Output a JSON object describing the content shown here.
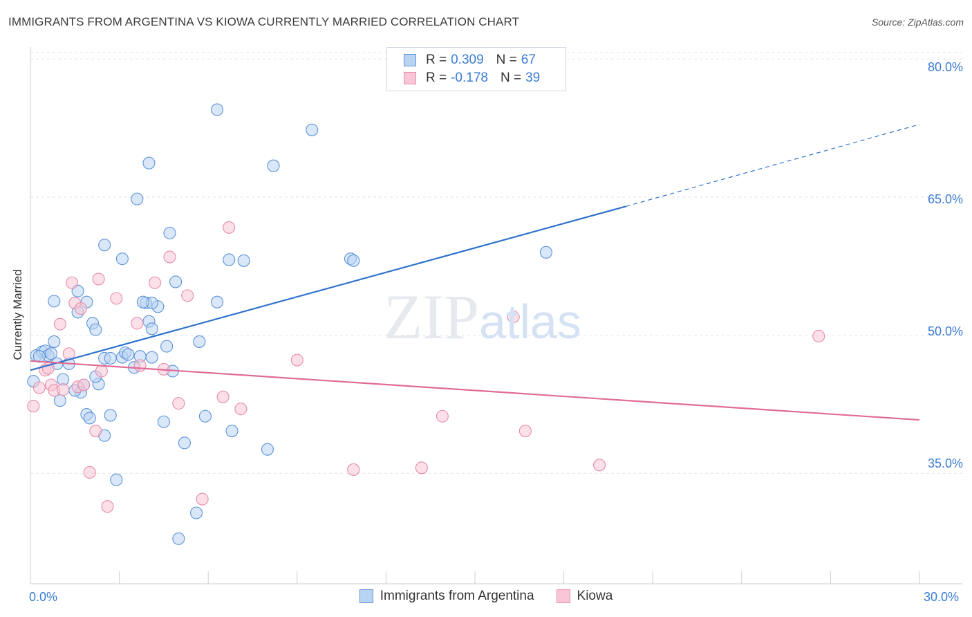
{
  "title": "IMMIGRANTS FROM ARGENTINA VS KIOWA CURRENTLY MARRIED CORRELATION CHART",
  "source": "Source: ZipAtlas.com",
  "watermark": {
    "zip": "ZIP",
    "atlas": "atlas"
  },
  "legend": {
    "r_label": "R =",
    "n_label": "N =",
    "series1": {
      "r": "0.309",
      "n": "67"
    },
    "series2": {
      "r": "-0.178",
      "n": "39"
    }
  },
  "colors": {
    "blue_fill": "#b9d3f3",
    "blue_stroke": "#5b93d8",
    "blue_line": "#2f72cc",
    "pink_fill": "#f8c6d6",
    "pink_stroke": "#e58cab",
    "pink_line": "#e06b96",
    "tick_text": "#3a7bd5",
    "grid": "#dfe3e8"
  },
  "chart_data": {
    "type": "scatter",
    "xlabel": "",
    "ylabel": "Currently Married",
    "xlim": [
      0,
      30
    ],
    "ylim": [
      23,
      81
    ],
    "x_tick_labels": [
      "0.0%",
      "30.0%"
    ],
    "y_ticks": [
      35,
      50,
      65,
      80
    ],
    "y_tick_labels": [
      "35.0%",
      "50.0%",
      "65.0%",
      "80.0%"
    ],
    "grid": true,
    "legend_position": "top-center",
    "series": [
      {
        "name": "Immigrants from Argentina",
        "color": "blue",
        "points": [
          [
            0.1,
            45.0
          ],
          [
            0.2,
            47.8
          ],
          [
            0.4,
            48.2
          ],
          [
            0.5,
            48.3
          ],
          [
            0.6,
            47.8
          ],
          [
            0.7,
            48.0
          ],
          [
            0.8,
            49.3
          ],
          [
            0.9,
            46.9
          ],
          [
            1.0,
            42.9
          ],
          [
            1.1,
            45.2
          ],
          [
            1.3,
            46.9
          ],
          [
            0.8,
            53.7
          ],
          [
            1.9,
            53.6
          ],
          [
            1.6,
            54.8
          ],
          [
            1.6,
            52.5
          ],
          [
            2.1,
            51.3
          ],
          [
            2.2,
            50.6
          ],
          [
            1.7,
            43.8
          ],
          [
            1.9,
            41.4
          ],
          [
            2.0,
            41.0
          ],
          [
            2.5,
            39.1
          ],
          [
            2.3,
            44.7
          ],
          [
            2.5,
            47.5
          ],
          [
            2.7,
            47.5
          ],
          [
            2.7,
            41.3
          ],
          [
            3.1,
            47.6
          ],
          [
            3.2,
            48.1
          ],
          [
            3.3,
            47.9
          ],
          [
            3.5,
            46.5
          ],
          [
            3.7,
            47.7
          ],
          [
            3.9,
            53.5
          ],
          [
            4.1,
            47.6
          ],
          [
            4.0,
            51.5
          ],
          [
            4.1,
            50.7
          ],
          [
            4.3,
            53.1
          ],
          [
            4.1,
            53.5
          ],
          [
            4.6,
            48.8
          ],
          [
            4.8,
            46.1
          ],
          [
            4.9,
            55.8
          ],
          [
            4.5,
            40.6
          ],
          [
            5.2,
            38.3
          ],
          [
            5.7,
            49.3
          ],
          [
            5.9,
            41.2
          ],
          [
            6.3,
            53.6
          ],
          [
            6.7,
            58.2
          ],
          [
            6.8,
            39.6
          ],
          [
            7.2,
            58.1
          ],
          [
            8.0,
            37.6
          ],
          [
            8.2,
            68.4
          ],
          [
            9.5,
            72.3
          ],
          [
            10.8,
            58.3
          ],
          [
            10.9,
            58.1
          ],
          [
            17.4,
            59.0
          ],
          [
            6.3,
            74.5
          ],
          [
            4.0,
            68.7
          ],
          [
            3.6,
            64.8
          ],
          [
            4.7,
            61.1
          ],
          [
            2.5,
            59.8
          ],
          [
            3.1,
            58.3
          ],
          [
            3.8,
            53.6
          ],
          [
            2.9,
            34.3
          ],
          [
            5.6,
            30.7
          ],
          [
            5.0,
            27.9
          ],
          [
            2.2,
            45.5
          ],
          [
            1.8,
            44.6
          ],
          [
            0.3,
            47.7
          ],
          [
            1.5,
            44.0
          ]
        ]
      },
      {
        "name": "Kiowa",
        "color": "pink",
        "points": [
          [
            0.1,
            42.3
          ],
          [
            0.3,
            44.3
          ],
          [
            0.5,
            46.2
          ],
          [
            0.7,
            44.6
          ],
          [
            0.8,
            44.0
          ],
          [
            1.0,
            51.2
          ],
          [
            1.1,
            44.1
          ],
          [
            1.3,
            48.0
          ],
          [
            1.4,
            55.7
          ],
          [
            1.5,
            53.5
          ],
          [
            1.6,
            44.4
          ],
          [
            1.7,
            52.9
          ],
          [
            2.0,
            35.1
          ],
          [
            2.2,
            39.6
          ],
          [
            2.3,
            56.1
          ],
          [
            2.4,
            46.1
          ],
          [
            2.6,
            31.4
          ],
          [
            2.9,
            54.0
          ],
          [
            3.6,
            51.3
          ],
          [
            3.7,
            46.7
          ],
          [
            4.2,
            55.7
          ],
          [
            4.5,
            46.3
          ],
          [
            4.7,
            58.5
          ],
          [
            5.0,
            42.6
          ],
          [
            5.3,
            54.3
          ],
          [
            5.8,
            32.2
          ],
          [
            6.5,
            43.3
          ],
          [
            6.7,
            61.7
          ],
          [
            7.1,
            42.0
          ],
          [
            9.0,
            47.3
          ],
          [
            10.9,
            35.4
          ],
          [
            13.2,
            35.6
          ],
          [
            13.9,
            41.2
          ],
          [
            16.3,
            52.0
          ],
          [
            16.7,
            39.6
          ],
          [
            19.2,
            35.9
          ],
          [
            26.6,
            49.9
          ],
          [
            0.6,
            46.4
          ],
          [
            1.8,
            44.6
          ]
        ]
      }
    ],
    "trend_lines": [
      {
        "series": "Immigrants from Argentina",
        "solid": [
          [
            0,
            46.2
          ],
          [
            20.1,
            64.0
          ]
        ],
        "dashed": [
          [
            20.1,
            64.0
          ],
          [
            30,
            72.9
          ]
        ]
      },
      {
        "series": "Kiowa",
        "solid": [
          [
            0,
            47.2
          ],
          [
            30,
            40.8
          ]
        ]
      }
    ]
  }
}
